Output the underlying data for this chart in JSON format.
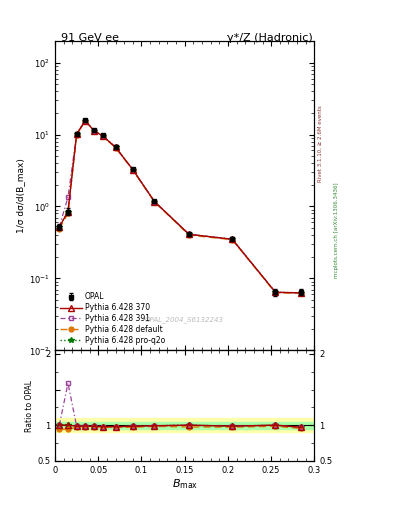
{
  "title_left": "91 GeV ee",
  "title_right": "γ*/Z (Hadronic)",
  "xlabel": "B_{max}",
  "ylabel_main": "1/σ dσ/d(B_max)",
  "ylabel_ratio": "Ratio to OPAL",
  "right_label_top": "Rivet 3.1.10, ≥ 2.6M events",
  "right_label_bottom": "mcplots.cern.ch [arXiv:1306.3436]",
  "watermark": "OPAL_2004_S6132243",
  "opal_x": [
    0.005,
    0.015,
    0.025,
    0.035,
    0.045,
    0.055,
    0.07,
    0.09,
    0.115,
    0.155,
    0.205,
    0.255,
    0.285
  ],
  "opal_y": [
    0.52,
    0.85,
    10.3,
    15.8,
    11.5,
    9.8,
    6.8,
    3.3,
    1.18,
    0.41,
    0.355,
    0.064,
    0.065
  ],
  "opal_yerr": [
    0.05,
    0.1,
    0.35,
    0.45,
    0.35,
    0.28,
    0.25,
    0.13,
    0.045,
    0.018,
    0.018,
    0.007,
    0.007
  ],
  "p370_x": [
    0.005,
    0.015,
    0.025,
    0.035,
    0.045,
    0.055,
    0.07,
    0.09,
    0.115,
    0.155,
    0.205,
    0.255,
    0.285
  ],
  "p370_y": [
    0.52,
    0.85,
    10.15,
    15.6,
    11.3,
    9.6,
    6.65,
    3.25,
    1.17,
    0.41,
    0.35,
    0.064,
    0.063
  ],
  "p391_x": [
    0.005,
    0.015,
    0.025,
    0.035,
    0.045,
    0.055,
    0.07,
    0.09,
    0.115,
    0.155,
    0.205,
    0.255,
    0.285
  ],
  "p391_y": [
    0.52,
    1.35,
    10.15,
    15.6,
    11.3,
    9.6,
    6.65,
    3.25,
    1.17,
    0.41,
    0.35,
    0.064,
    0.063
  ],
  "pdef_x": [
    0.005,
    0.015,
    0.025,
    0.035,
    0.045,
    0.055,
    0.07,
    0.09,
    0.115,
    0.155,
    0.205,
    0.255,
    0.285
  ],
  "pdef_y": [
    0.49,
    0.8,
    10.0,
    15.4,
    11.2,
    9.5,
    6.6,
    3.2,
    1.16,
    0.4,
    0.345,
    0.063,
    0.062
  ],
  "pq2o_x": [
    0.005,
    0.015,
    0.025,
    0.035,
    0.045,
    0.055,
    0.07,
    0.09,
    0.115,
    0.155,
    0.205,
    0.255,
    0.285
  ],
  "pq2o_y": [
    0.52,
    0.85,
    10.15,
    15.6,
    11.3,
    9.6,
    6.65,
    3.25,
    1.17,
    0.41,
    0.35,
    0.064,
    0.063
  ],
  "color_opal": "#000000",
  "color_p370": "#aa0000",
  "color_p391": "#994499",
  "color_pdef": "#dd7700",
  "color_pq2o": "#007700",
  "band_yellow": "#ffffaa",
  "band_green": "#aaffaa",
  "xlim": [
    0.0,
    0.3
  ],
  "ylim_main_log": [
    0.01,
    200
  ],
  "ylim_ratio": [
    0.5,
    2.05
  ],
  "xticks": [
    0.0,
    0.05,
    0.1,
    0.15,
    0.2,
    0.25,
    0.3
  ],
  "xticklabels": [
    "0",
    "0.05",
    "0.1",
    "0.15",
    "0.2",
    "0.25",
    "0.3"
  ]
}
